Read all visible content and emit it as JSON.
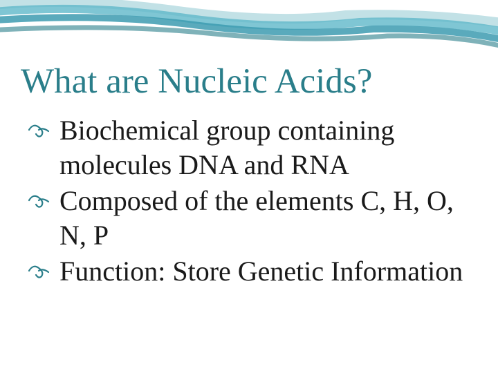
{
  "slide": {
    "title": "What are Nucleic Acids?",
    "bullets": [
      "Biochemical group containing molecules DNA and RNA",
      "Composed of the elements C, H, O, N, P",
      "Function:  Store Genetic Information"
    ]
  },
  "style": {
    "title_color": "#2a7e8a",
    "title_fontsize": 51,
    "body_color": "#1a1a1a",
    "body_fontsize": 40,
    "bullet_color": "#2a7e8a",
    "background_color": "#ffffff",
    "wave_colors": [
      "#3d9bb0",
      "#5fb8c9",
      "#a8d4dc"
    ],
    "font_family": "Georgia, serif"
  }
}
